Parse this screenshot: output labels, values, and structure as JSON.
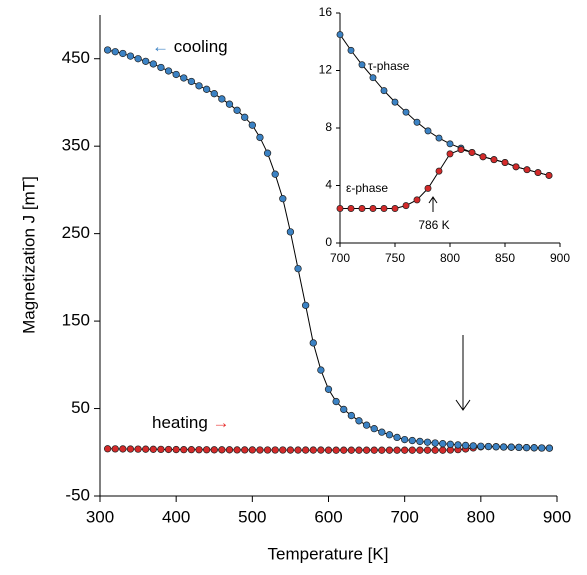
{
  "chart_data": [
    {
      "type": "scatter",
      "xlabel": "Temperature [K]",
      "ylabel": "Magnetization J [mT]",
      "xlim": [
        300,
        900
      ],
      "xticks": [
        300,
        400,
        500,
        600,
        700,
        800,
        900
      ],
      "ylim": [
        -50,
        500
      ],
      "yticks": [
        -50,
        50,
        150,
        250,
        350,
        450
      ],
      "x": [
        310,
        320,
        330,
        340,
        350,
        360,
        370,
        380,
        390,
        400,
        410,
        420,
        430,
        440,
        450,
        460,
        470,
        480,
        490,
        500,
        510,
        520,
        530,
        540,
        550,
        560,
        570,
        580,
        590,
        600,
        610,
        620,
        630,
        640,
        650,
        660,
        670,
        680,
        690,
        700,
        710,
        720,
        730,
        740,
        750,
        760,
        770,
        780,
        790,
        800,
        810,
        820,
        830,
        840,
        850,
        860,
        870,
        880,
        890
      ],
      "series": [
        {
          "name": "heating",
          "color": "#d42a2a",
          "values": [
            4.0,
            3.9,
            3.8,
            3.7,
            3.6,
            3.5,
            3.4,
            3.3,
            3.2,
            3.1,
            3.0,
            3.0,
            2.9,
            2.9,
            2.8,
            2.8,
            2.8,
            2.7,
            2.7,
            2.7,
            2.6,
            2.6,
            2.6,
            2.6,
            2.5,
            2.5,
            2.5,
            2.5,
            2.5,
            2.4,
            2.4,
            2.4,
            2.4,
            2.4,
            2.4,
            2.4,
            2.4,
            2.4,
            2.4,
            2.4,
            2.4,
            2.4,
            2.4,
            2.4,
            2.4,
            2.6,
            3.0,
            3.8,
            5.0,
            6.2,
            6.5,
            6.3,
            6.0,
            5.8,
            5.6,
            5.3,
            5.1,
            4.9,
            4.7
          ]
        },
        {
          "name": "cooling",
          "color": "#3b82c4",
          "values": [
            460,
            458,
            456,
            453,
            450,
            447,
            444,
            440,
            436,
            432,
            428,
            424,
            419,
            415,
            410,
            404,
            398,
            391,
            383,
            374,
            360,
            342,
            318,
            290,
            252,
            210,
            168,
            125,
            94,
            72,
            58,
            49,
            42,
            36,
            31,
            27,
            23,
            20,
            17,
            14.5,
            13.4,
            12.4,
            11.5,
            10.6,
            9.8,
            9.1,
            8.4,
            7.8,
            7.3,
            6.9,
            6.6,
            6.3,
            6.0,
            5.8,
            5.6,
            5.3,
            5.1,
            4.9,
            4.7
          ]
        }
      ],
      "annotations": [
        {
          "arrow": "←",
          "text": "cooling",
          "color": "#3b82c4"
        },
        {
          "text": "heating",
          "arrow": "→",
          "color": "#e8312f"
        }
      ]
    },
    {
      "type": "scatter",
      "xlim": [
        700,
        900
      ],
      "xticks": [
        700,
        750,
        800,
        850,
        900
      ],
      "ylim": [
        0,
        16
      ],
      "yticks": [
        0,
        4,
        8,
        12,
        16
      ],
      "x": [
        700,
        710,
        720,
        730,
        740,
        750,
        760,
        770,
        780,
        790,
        800,
        810,
        820,
        830,
        840,
        850,
        860,
        870,
        880,
        890
      ],
      "series": [
        {
          "name": "τ-phase",
          "color": "#3b82c4",
          "values": [
            14.5,
            13.4,
            12.4,
            11.5,
            10.6,
            9.8,
            9.1,
            8.4,
            7.8,
            7.3,
            6.9,
            6.6,
            6.3,
            6.0,
            5.8,
            5.6,
            5.3,
            5.1,
            4.9,
            4.7
          ]
        },
        {
          "name": "ε-phase",
          "color": "#d42a2a",
          "values": [
            2.4,
            2.4,
            2.4,
            2.4,
            2.4,
            2.4,
            2.6,
            3.0,
            3.8,
            5.0,
            6.2,
            6.5,
            6.3,
            6.0,
            5.8,
            5.6,
            5.3,
            5.1,
            4.9,
            4.7
          ]
        }
      ],
      "annotations": [
        {
          "text": "786 K"
        }
      ]
    }
  ]
}
